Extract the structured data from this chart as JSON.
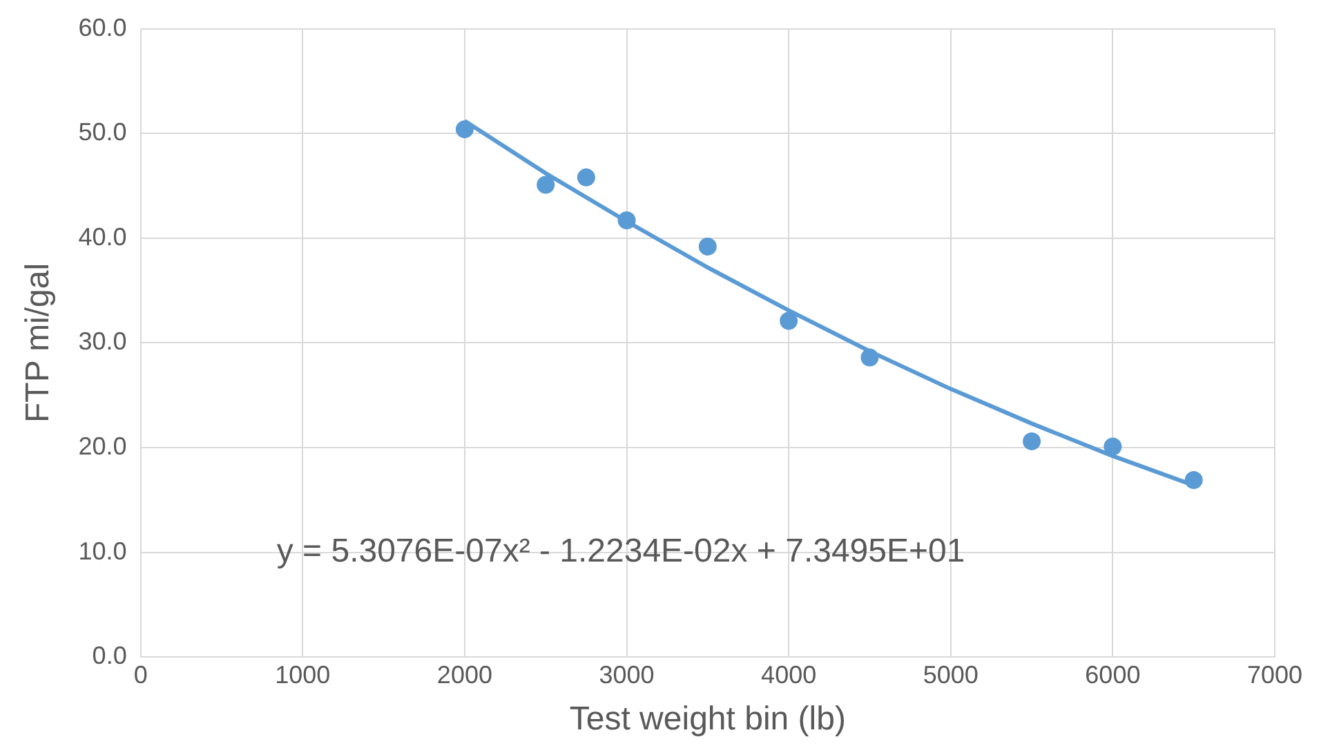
{
  "chart_data": {
    "type": "scatter",
    "xlabel": "Test weight bin (lb)",
    "ylabel": "FTP mi/gal",
    "series": [
      {
        "marker": "circle",
        "color": "#5b9bd5",
        "x": [
          2000,
          2500,
          2750,
          3000,
          3500,
          4000,
          4500,
          5500,
          6000,
          6500
        ],
        "values": [
          50.4,
          45.1,
          45.8,
          41.7,
          39.2,
          32.1,
          28.6,
          20.6,
          20.1,
          16.9
        ]
      },
      {
        "type": "line",
        "marker": "none",
        "color": "#5b9bd5",
        "x": [
          2000,
          2500,
          3000,
          3500,
          4000,
          4500,
          5000,
          5500,
          6000,
          6500
        ],
        "values": [
          51.2,
          46.2,
          41.6,
          37.2,
          33.1,
          29.2,
          25.6,
          22.3,
          19.2,
          16.4
        ]
      }
    ],
    "xlim": [
      0,
      7000
    ],
    "xticks": [
      0,
      1000,
      2000,
      3000,
      4000,
      5000,
      6000,
      7000
    ],
    "ylim": [
      0,
      60
    ],
    "yticks": [
      {
        "value": 0,
        "label": "0.0"
      },
      {
        "value": 10,
        "label": "10.0"
      },
      {
        "value": 20,
        "label": "20.0"
      },
      {
        "value": 30,
        "label": "30.0"
      },
      {
        "value": 40,
        "label": "40.0"
      },
      {
        "value": 50,
        "label": "50.0"
      },
      {
        "value": 60,
        "label": "60.0"
      }
    ],
    "grid": true,
    "legend": false,
    "annotations": [
      "y = 5.3076E-07x² - 1.2234E-02x + 7.3495E+01"
    ]
  }
}
